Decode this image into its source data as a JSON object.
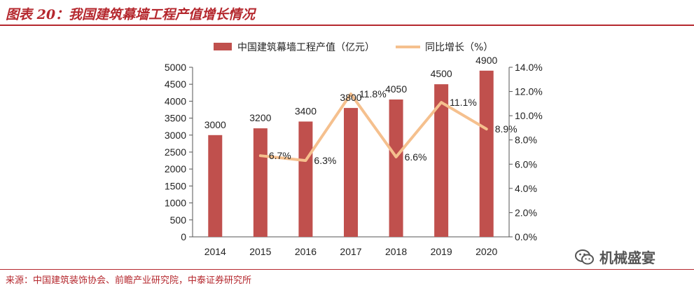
{
  "header": {
    "title": "图表 20：我国建筑幕墙工程产值增长情况"
  },
  "footer": {
    "source": "来源：中国建筑装饰协会、前瞻产业研究院，中泰证券研究所",
    "watermark": "机械盛宴"
  },
  "colors": {
    "accent": "#b5282e",
    "bar": "#c0504d",
    "line": "#f5c08e",
    "axis": "#555555"
  },
  "chart_data": {
    "type": "bar",
    "categories": [
      "2014",
      "2015",
      "2016",
      "2017",
      "2018",
      "2019",
      "2020"
    ],
    "series": [
      {
        "name": "中国建筑幕墙工程产值（亿元）",
        "type": "bar",
        "axis": "left",
        "values": [
          3000,
          3200,
          3400,
          3800,
          4050,
          4500,
          4900
        ],
        "labels": [
          "3000",
          "3200",
          "3400",
          "3800",
          "4050",
          "4500",
          "4900"
        ]
      },
      {
        "name": "同比增长（%）",
        "type": "line",
        "axis": "right",
        "values": [
          null,
          6.7,
          6.3,
          11.8,
          6.6,
          11.1,
          8.9
        ],
        "labels": [
          "",
          "6.7%",
          "6.3%",
          "11.8%",
          "6.6%",
          "11.1%",
          "8.9%"
        ]
      }
    ],
    "y_left": {
      "ylim": [
        0,
        5000
      ],
      "ticks": [
        "0",
        "500",
        "1000",
        "1500",
        "2000",
        "2500",
        "3000",
        "3500",
        "4000",
        "4500",
        "5000"
      ]
    },
    "y_right": {
      "ylim": [
        0,
        14
      ],
      "ticks": [
        "0.0%",
        "2.0%",
        "4.0%",
        "6.0%",
        "8.0%",
        "10.0%",
        "12.0%",
        "14.0%"
      ]
    },
    "legend_position": "top-center",
    "grid": false
  }
}
